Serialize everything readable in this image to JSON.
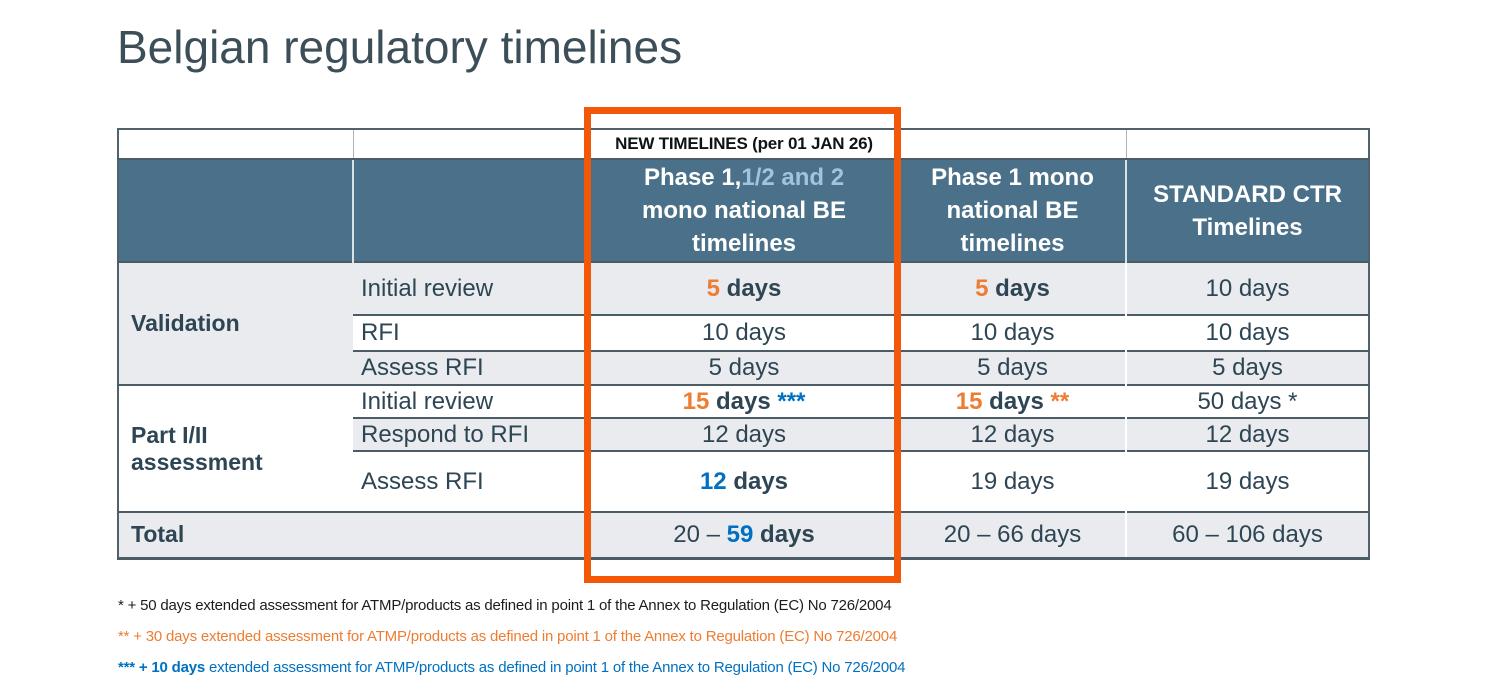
{
  "slide": {
    "title": "Belgian regulatory timelines"
  },
  "colors": {
    "header_bg": "#4a7189",
    "header_light_blue": "#a2c3de",
    "row_shade": "#e9ebef",
    "row_white": "#ffffff",
    "accent_orange": "#ed7d31",
    "accent_blue": "#0070c0",
    "highlight_box_orange": "#f35708",
    "text_dark": "#2e4553"
  },
  "table": {
    "banner": "NEW TIMELINES (per 01 JAN 26)",
    "headers": [
      {
        "parts": [
          {
            "t": "Phase 1,",
            "s": "w"
          },
          {
            "t": "1/2 and 2",
            "s": "lb"
          },
          {
            "t": "mono national BE",
            "s": "w",
            "br": true
          },
          {
            "t": "timelines",
            "s": "w",
            "br": true
          }
        ]
      },
      {
        "parts": [
          {
            "t": "Phase 1 mono",
            "s": "w"
          },
          {
            "t": "national BE",
            "s": "w",
            "br": true
          },
          {
            "t": "timelines",
            "s": "w",
            "br": true
          }
        ]
      },
      {
        "parts": [
          {
            "t": "STANDARD CTR",
            "s": "w"
          },
          {
            "t": "Timelines",
            "s": "w",
            "br": true
          }
        ]
      }
    ],
    "sections": [
      {
        "label": "Validation",
        "rows": [
          {
            "step": "Initial review",
            "cells": [
              [
                {
                  "t": "5",
                  "s": "ob"
                },
                {
                  "t": " days",
                  "s": "db"
                }
              ],
              [
                {
                  "t": "5",
                  "s": "ob"
                },
                {
                  "t": " days",
                  "s": "db"
                }
              ],
              [
                {
                  "t": "10 days"
                }
              ]
            ]
          },
          {
            "step": "RFI",
            "cells": [
              [
                {
                  "t": "10 days"
                }
              ],
              [
                {
                  "t": "10 days"
                }
              ],
              [
                {
                  "t": "10 days"
                }
              ]
            ]
          },
          {
            "step": "Assess RFI",
            "cells": [
              [
                {
                  "t": "5 days"
                }
              ],
              [
                {
                  "t": "5 days"
                }
              ],
              [
                {
                  "t": "5 days"
                }
              ]
            ]
          }
        ]
      },
      {
        "label": "Part I/II assessment",
        "rows": [
          {
            "step": "Initial review",
            "cells": [
              [
                {
                  "t": "15",
                  "s": "ob"
                },
                {
                  "t": " days ",
                  "s": "db"
                },
                {
                  "t": "***",
                  "s": "bb"
                }
              ],
              [
                {
                  "t": "15",
                  "s": "ob"
                },
                {
                  "t": " days ",
                  "s": "db"
                },
                {
                  "t": "**",
                  "s": "ob"
                }
              ],
              [
                {
                  "t": "50 days *"
                }
              ]
            ]
          },
          {
            "step": "Respond to RFI",
            "cells": [
              [
                {
                  "t": "12 days"
                }
              ],
              [
                {
                  "t": "12 days"
                }
              ],
              [
                {
                  "t": "12 days"
                }
              ]
            ]
          },
          {
            "step": "Assess RFI",
            "cells": [
              [
                {
                  "t": "12",
                  "s": "bb"
                },
                {
                  "t": " days",
                  "s": "db"
                }
              ],
              [
                {
                  "t": "19 days"
                }
              ],
              [
                {
                  "t": "19 days"
                }
              ]
            ]
          }
        ]
      }
    ],
    "total": {
      "label": "Total",
      "cells": [
        [
          {
            "t": "20 – "
          },
          {
            "t": "59",
            "s": "bb"
          },
          {
            "t": " days",
            "s": "db"
          }
        ],
        [
          {
            "t": "20 – 66 days"
          }
        ],
        [
          {
            "t": "60 – 106 days"
          }
        ]
      ]
    }
  },
  "footnotes": [
    {
      "tone": "black",
      "parts": [
        {
          "t": "* + 50 days extended assessment for ATMP/products as defined in point 1 of the Annex to Regulation (EC) No 726/2004"
        }
      ]
    },
    {
      "tone": "orange",
      "parts": [
        {
          "t": "** + 30 days extended assessment for ATMP/products as defined in point 1 of the Annex to Regulation (EC) No 726/2004"
        }
      ]
    },
    {
      "tone": "blue",
      "parts": [
        {
          "t": "*** + 10 days",
          "s": "b"
        },
        {
          "t": " extended assessment for ATMP/products as defined in point 1 of the Annex to Regulation (EC) No 726/2004"
        }
      ]
    }
  ]
}
